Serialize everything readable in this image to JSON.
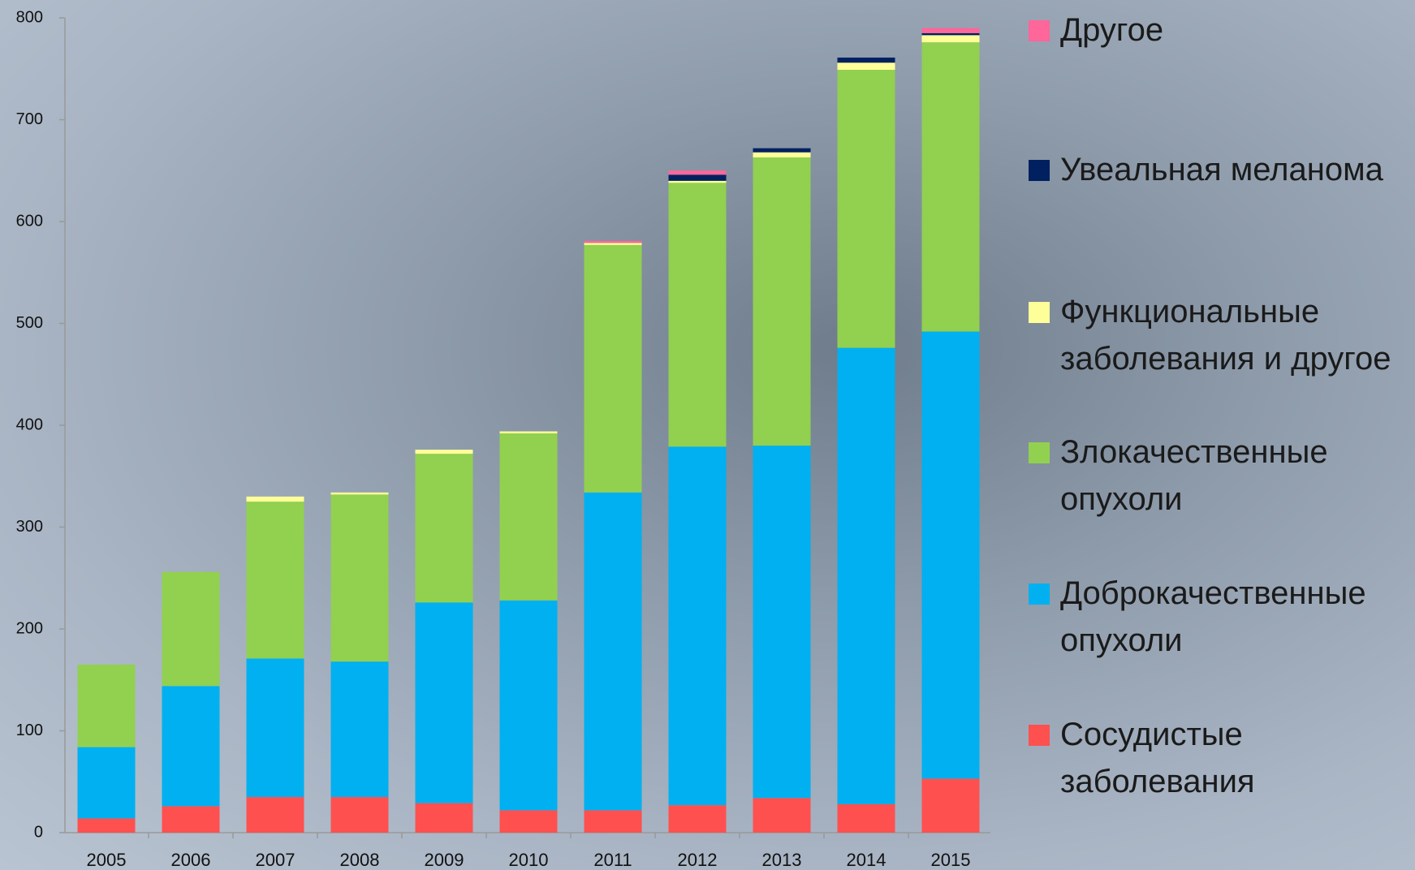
{
  "chart_data": {
    "type": "stacked_bar",
    "categories": [
      "2005",
      "2006",
      "2007",
      "2008",
      "2009",
      "2010",
      "2011",
      "2012",
      "2013",
      "2014",
      "2015"
    ],
    "series": [
      {
        "name": "Сосудистые заболевания",
        "color": "#ff5050",
        "values": [
          14,
          26,
          35,
          35,
          29,
          22,
          22,
          27,
          34,
          28,
          53
        ]
      },
      {
        "name": "Доброкачественные опухоли",
        "color": "#00b0f0",
        "values": [
          70,
          118,
          136,
          133,
          197,
          206,
          312,
          352,
          346,
          448,
          439
        ]
      },
      {
        "name": "Злокачественные опухоли",
        "color": "#92d050",
        "values": [
          81,
          112,
          154,
          164,
          146,
          164,
          243,
          259,
          283,
          273,
          284
        ]
      },
      {
        "name": "Функциональные заболевания и другое",
        "color": "#ffff99",
        "values": [
          0,
          0,
          5,
          2,
          4,
          2,
          2,
          2,
          5,
          7,
          7
        ]
      },
      {
        "name": "Увеальная меланома",
        "color": "#002060",
        "values": [
          0,
          0,
          0,
          0,
          0,
          0,
          0,
          6,
          4,
          5,
          2
        ]
      },
      {
        "name": "Другое",
        "color": "#ff6699",
        "values": [
          0,
          0,
          0,
          0,
          0,
          0,
          2,
          4,
          0,
          0,
          5
        ]
      }
    ],
    "ylim": [
      0,
      800
    ],
    "yticks": [
      0,
      100,
      200,
      300,
      400,
      500,
      600,
      700,
      800
    ],
    "grid": false
  }
}
